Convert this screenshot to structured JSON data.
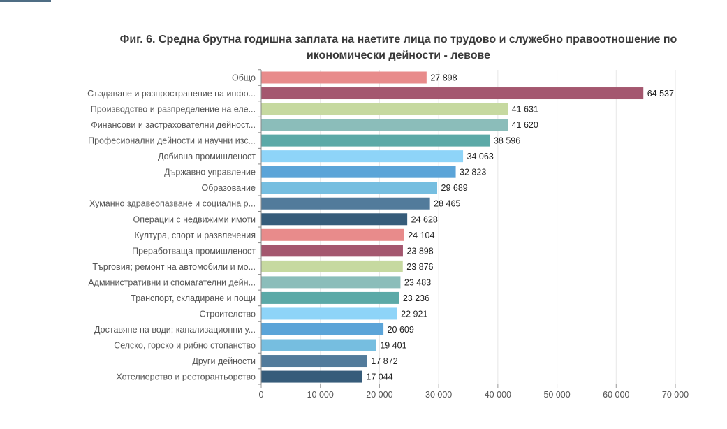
{
  "chart_data": {
    "type": "bar",
    "orientation": "horizontal",
    "title": "Фиг. 6. Средна брутна годишна заплата на наетите лица по трудово и служебно правоотношение по икономически дейности - левове",
    "title_lines": [
      "Фиг. 6. Средна брутна годишна заплата на наетите лица по трудово и служебно правоотношение по",
      "икономически дейности - левове"
    ],
    "categories": [
      "Общо",
      "Създаване и разпространение на инфо...",
      "Производство и разпределение на еле...",
      "Финансови и застрахователни дейност...",
      "Професионални дейности и научни изс...",
      "Добивна промишленост",
      "Държавно управление",
      "Образование",
      "Хуманно здравеопазване и социална р...",
      "Операции с недвижими имоти",
      "Култура, спорт и развлечения",
      "Преработваща промишленост",
      "Търговия; ремонт на автомобили и мо...",
      "Административни и спомагателни дейн...",
      "Транспорт, складиране и пощи",
      "Строителство",
      "Доставяне на води; канализационни у...",
      "Селско, горско и рибно стопанство",
      "Други дейности",
      "Хотелиерство и ресторантьорство"
    ],
    "values": [
      27898,
      64537,
      41631,
      41620,
      38596,
      34063,
      32823,
      29689,
      28465,
      24628,
      24104,
      23898,
      23876,
      23483,
      23236,
      22921,
      20609,
      19401,
      17872,
      17044
    ],
    "value_labels": [
      "27 898",
      "64 537",
      "41 631",
      "41 620",
      "38 596",
      "34 063",
      "32 823",
      "29 689",
      "28 465",
      "24 628",
      "24 104",
      "23 898",
      "23 876",
      "23 483",
      "23 236",
      "22 921",
      "20 609",
      "19 401",
      "17 872",
      "17 044"
    ],
    "colors": [
      "#e88b8b",
      "#a4576f",
      "#c6d9a0",
      "#8bbdba",
      "#5ba9a7",
      "#8ed4f8",
      "#5ba4d8",
      "#76bee0",
      "#527b9b",
      "#365c7a"
    ],
    "xlim": [
      0,
      70000
    ],
    "xticks": [
      0,
      10000,
      20000,
      30000,
      40000,
      50000,
      60000,
      70000
    ],
    "xtick_labels": [
      "0",
      "10 000",
      "20 000",
      "30 000",
      "40 000",
      "50 000",
      "60 000",
      "70 000"
    ],
    "grid": "vertical",
    "legend": "none"
  }
}
